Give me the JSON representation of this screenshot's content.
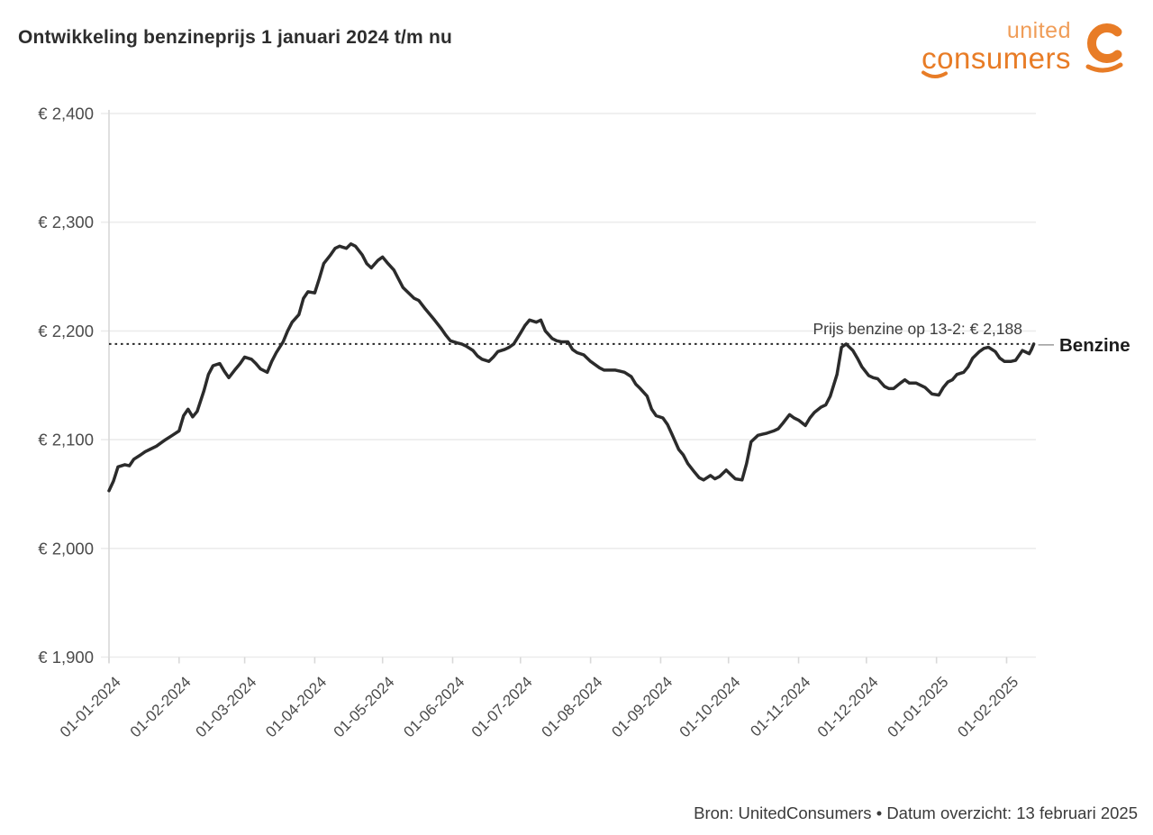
{
  "title": "Ontwikkeling benzineprijs 1 januari 2024 t/m nu",
  "logo": {
    "line1": "united",
    "line2": "consumers",
    "icon": "unitedconsumers-c-icon",
    "color_light": "#f09d58",
    "color_dark": "#e87c26"
  },
  "footer": "Bron: UnitedConsumers • Datum overzicht: 13 februari 2025",
  "colors": {
    "line": "#2b2b2b",
    "grid": "#ececec",
    "axis": "#d9d9d9",
    "tick_label": "#4b4b4b",
    "annotation_text": "#3d3d3d",
    "connector": "#9a9a9a",
    "right_label": "#1c1c1c"
  },
  "chart_data": {
    "type": "line",
    "title": "Ontwikkeling benzineprijs 1 januari 2024 t/m nu",
    "series_name": "Benzine",
    "right_label": "Benzine",
    "annotation": "Prijs benzine op 13-2: € 2,188",
    "reference_value": 2188,
    "ylim": [
      1900,
      2400
    ],
    "grid": true,
    "legend_position": "right-of-last-point",
    "yticks": [
      {
        "value": 2400,
        "label": "€ 2,400"
      },
      {
        "value": 2300,
        "label": "€ 2,300"
      },
      {
        "value": 2200,
        "label": "€ 2,200"
      },
      {
        "value": 2100,
        "label": "€ 2,100"
      },
      {
        "value": 2000,
        "label": "€ 2,000"
      },
      {
        "value": 1900,
        "label": "€ 1,900"
      }
    ],
    "xticks": [
      "01-01-2024",
      "01-02-2024",
      "01-03-2024",
      "01-04-2024",
      "01-05-2024",
      "01-06-2024",
      "01-07-2024",
      "01-08-2024",
      "01-09-2024",
      "01-10-2024",
      "01-11-2024",
      "01-12-2024",
      "01-01-2025",
      "01-02-2025"
    ],
    "series": [
      [
        "2024-01-01",
        2053
      ],
      [
        "2024-01-03",
        2062
      ],
      [
        "2024-01-05",
        2075
      ],
      [
        "2024-01-08",
        2077
      ],
      [
        "2024-01-10",
        2076
      ],
      [
        "2024-01-12",
        2082
      ],
      [
        "2024-01-15",
        2086
      ],
      [
        "2024-01-17",
        2089
      ],
      [
        "2024-01-19",
        2091
      ],
      [
        "2024-01-22",
        2094
      ],
      [
        "2024-01-24",
        2097
      ],
      [
        "2024-01-26",
        2100
      ],
      [
        "2024-01-29",
        2104
      ],
      [
        "2024-02-01",
        2108
      ],
      [
        "2024-02-03",
        2122
      ],
      [
        "2024-02-05",
        2128
      ],
      [
        "2024-02-07",
        2121
      ],
      [
        "2024-02-09",
        2126
      ],
      [
        "2024-02-12",
        2145
      ],
      [
        "2024-02-14",
        2160
      ],
      [
        "2024-02-16",
        2168
      ],
      [
        "2024-02-19",
        2170
      ],
      [
        "2024-02-21",
        2163
      ],
      [
        "2024-02-23",
        2157
      ],
      [
        "2024-02-26",
        2165
      ],
      [
        "2024-02-28",
        2170
      ],
      [
        "2024-03-01",
        2176
      ],
      [
        "2024-03-04",
        2174
      ],
      [
        "2024-03-06",
        2170
      ],
      [
        "2024-03-08",
        2165
      ],
      [
        "2024-03-11",
        2162
      ],
      [
        "2024-03-13",
        2172
      ],
      [
        "2024-03-15",
        2180
      ],
      [
        "2024-03-18",
        2190
      ],
      [
        "2024-03-20",
        2200
      ],
      [
        "2024-03-22",
        2208
      ],
      [
        "2024-03-25",
        2215
      ],
      [
        "2024-03-27",
        2230
      ],
      [
        "2024-03-29",
        2236
      ],
      [
        "2024-04-01",
        2235
      ],
      [
        "2024-04-03",
        2248
      ],
      [
        "2024-04-05",
        2262
      ],
      [
        "2024-04-08",
        2270
      ],
      [
        "2024-04-10",
        2276
      ],
      [
        "2024-04-12",
        2278
      ],
      [
        "2024-04-15",
        2276
      ],
      [
        "2024-04-17",
        2280
      ],
      [
        "2024-04-19",
        2278
      ],
      [
        "2024-04-22",
        2270
      ],
      [
        "2024-04-24",
        2262
      ],
      [
        "2024-04-26",
        2258
      ],
      [
        "2024-04-29",
        2265
      ],
      [
        "2024-05-01",
        2268
      ],
      [
        "2024-05-03",
        2263
      ],
      [
        "2024-05-06",
        2256
      ],
      [
        "2024-05-08",
        2248
      ],
      [
        "2024-05-10",
        2240
      ],
      [
        "2024-05-13",
        2234
      ],
      [
        "2024-05-15",
        2230
      ],
      [
        "2024-05-17",
        2228
      ],
      [
        "2024-05-20",
        2220
      ],
      [
        "2024-05-22",
        2215
      ],
      [
        "2024-05-24",
        2210
      ],
      [
        "2024-05-27",
        2202
      ],
      [
        "2024-05-29",
        2196
      ],
      [
        "2024-05-31",
        2191
      ],
      [
        "2024-06-03",
        2189
      ],
      [
        "2024-06-05",
        2188
      ],
      [
        "2024-06-07",
        2186
      ],
      [
        "2024-06-10",
        2182
      ],
      [
        "2024-06-12",
        2177
      ],
      [
        "2024-06-14",
        2174
      ],
      [
        "2024-06-17",
        2172
      ],
      [
        "2024-06-19",
        2176
      ],
      [
        "2024-06-21",
        2181
      ],
      [
        "2024-06-24",
        2183
      ],
      [
        "2024-06-26",
        2185
      ],
      [
        "2024-06-28",
        2188
      ],
      [
        "2024-07-01",
        2198
      ],
      [
        "2024-07-03",
        2205
      ],
      [
        "2024-07-05",
        2210
      ],
      [
        "2024-07-08",
        2208
      ],
      [
        "2024-07-10",
        2210
      ],
      [
        "2024-07-12",
        2200
      ],
      [
        "2024-07-15",
        2193
      ],
      [
        "2024-07-17",
        2191
      ],
      [
        "2024-07-19",
        2190
      ],
      [
        "2024-07-22",
        2190
      ],
      [
        "2024-07-24",
        2183
      ],
      [
        "2024-07-26",
        2180
      ],
      [
        "2024-07-29",
        2178
      ],
      [
        "2024-08-01",
        2172
      ],
      [
        "2024-08-05",
        2166
      ],
      [
        "2024-08-07",
        2164
      ],
      [
        "2024-08-09",
        2164
      ],
      [
        "2024-08-12",
        2164
      ],
      [
        "2024-08-14",
        2163
      ],
      [
        "2024-08-16",
        2162
      ],
      [
        "2024-08-19",
        2158
      ],
      [
        "2024-08-21",
        2151
      ],
      [
        "2024-08-23",
        2147
      ],
      [
        "2024-08-26",
        2140
      ],
      [
        "2024-08-28",
        2128
      ],
      [
        "2024-08-30",
        2122
      ],
      [
        "2024-09-02",
        2120
      ],
      [
        "2024-09-04",
        2114
      ],
      [
        "2024-09-06",
        2105
      ],
      [
        "2024-09-09",
        2091
      ],
      [
        "2024-09-11",
        2086
      ],
      [
        "2024-09-13",
        2078
      ],
      [
        "2024-09-16",
        2070
      ],
      [
        "2024-09-18",
        2065
      ],
      [
        "2024-09-20",
        2063
      ],
      [
        "2024-09-23",
        2067
      ],
      [
        "2024-09-25",
        2064
      ],
      [
        "2024-09-27",
        2066
      ],
      [
        "2024-09-30",
        2072
      ],
      [
        "2024-10-02",
        2068
      ],
      [
        "2024-10-04",
        2064
      ],
      [
        "2024-10-07",
        2063
      ],
      [
        "2024-10-09",
        2078
      ],
      [
        "2024-10-11",
        2098
      ],
      [
        "2024-10-14",
        2104
      ],
      [
        "2024-10-16",
        2105
      ],
      [
        "2024-10-18",
        2106
      ],
      [
        "2024-10-21",
        2108
      ],
      [
        "2024-10-23",
        2110
      ],
      [
        "2024-10-25",
        2115
      ],
      [
        "2024-10-28",
        2123
      ],
      [
        "2024-10-30",
        2120
      ],
      [
        "2024-11-01",
        2118
      ],
      [
        "2024-11-04",
        2113
      ],
      [
        "2024-11-06",
        2120
      ],
      [
        "2024-11-08",
        2125
      ],
      [
        "2024-11-11",
        2130
      ],
      [
        "2024-11-13",
        2132
      ],
      [
        "2024-11-15",
        2140
      ],
      [
        "2024-11-18",
        2160
      ],
      [
        "2024-11-20",
        2185
      ],
      [
        "2024-11-22",
        2188
      ],
      [
        "2024-11-25",
        2182
      ],
      [
        "2024-11-27",
        2175
      ],
      [
        "2024-11-29",
        2167
      ],
      [
        "2024-12-02",
        2159
      ],
      [
        "2024-12-04",
        2157
      ],
      [
        "2024-12-06",
        2156
      ],
      [
        "2024-12-09",
        2149
      ],
      [
        "2024-12-11",
        2147
      ],
      [
        "2024-12-13",
        2147
      ],
      [
        "2024-12-16",
        2152
      ],
      [
        "2024-12-18",
        2155
      ],
      [
        "2024-12-20",
        2152
      ],
      [
        "2024-12-23",
        2152
      ],
      [
        "2024-12-27",
        2148
      ],
      [
        "2024-12-30",
        2142
      ],
      [
        "2025-01-02",
        2141
      ],
      [
        "2025-01-04",
        2148
      ],
      [
        "2025-01-06",
        2153
      ],
      [
        "2025-01-08",
        2155
      ],
      [
        "2025-01-10",
        2160
      ],
      [
        "2025-01-13",
        2162
      ],
      [
        "2025-01-15",
        2167
      ],
      [
        "2025-01-17",
        2175
      ],
      [
        "2025-01-20",
        2181
      ],
      [
        "2025-01-22",
        2184
      ],
      [
        "2025-01-24",
        2185
      ],
      [
        "2025-01-27",
        2181
      ],
      [
        "2025-01-29",
        2175
      ],
      [
        "2025-01-31",
        2172
      ],
      [
        "2025-02-03",
        2172
      ],
      [
        "2025-02-05",
        2173
      ],
      [
        "2025-02-07",
        2179
      ],
      [
        "2025-02-08",
        2182
      ],
      [
        "2025-02-10",
        2180
      ],
      [
        "2025-02-11",
        2179
      ],
      [
        "2025-02-12",
        2183
      ],
      [
        "2025-02-13",
        2188
      ]
    ]
  }
}
